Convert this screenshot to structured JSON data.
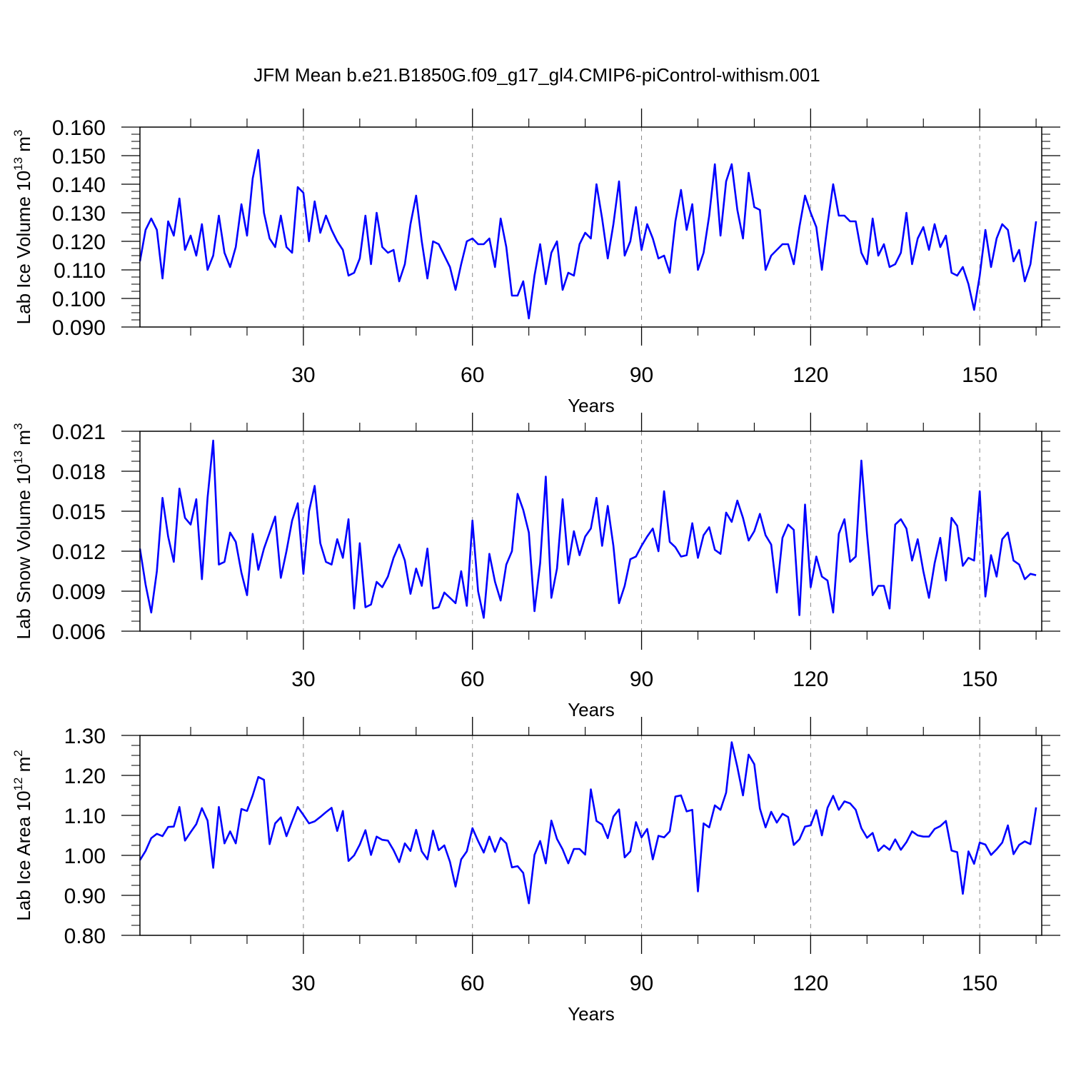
{
  "chart_data": {
    "type": "line",
    "title": "JFM Mean b.e21.B1850G.f09_g17_gl4.CMIP6-piControl-withism.001",
    "line_color": "#0000ff",
    "x": [
      1,
      2,
      3,
      4,
      5,
      6,
      7,
      8,
      9,
      10,
      11,
      12,
      13,
      14,
      15,
      16,
      17,
      18,
      19,
      20,
      21,
      22,
      23,
      24,
      25,
      26,
      27,
      28,
      29,
      30,
      31,
      32,
      33,
      34,
      35,
      36,
      37,
      38,
      39,
      40,
      41,
      42,
      43,
      44,
      45,
      46,
      47,
      48,
      49,
      50,
      51,
      52,
      53,
      54,
      55,
      56,
      57,
      58,
      59,
      60,
      61,
      62,
      63,
      64,
      65,
      66,
      67,
      68,
      69,
      70,
      71,
      72,
      73,
      74,
      75,
      76,
      77,
      78,
      79,
      80,
      81,
      82,
      83,
      84,
      85,
      86,
      87,
      88,
      89,
      90,
      91,
      92,
      93,
      94,
      95,
      96,
      97,
      98,
      99,
      100,
      101,
      102,
      103,
      104,
      105,
      106,
      107,
      108,
      109,
      110,
      111,
      112,
      113,
      114,
      115,
      116,
      117,
      118,
      119,
      120,
      121,
      122,
      123,
      124,
      125,
      126,
      127,
      128,
      129,
      130,
      131,
      132,
      133,
      134,
      135,
      136,
      137,
      138,
      139,
      140,
      141,
      142,
      143,
      144,
      145,
      146,
      147,
      148,
      149,
      150,
      151,
      152,
      153,
      154,
      155,
      156,
      157,
      158,
      159,
      160,
      161
    ],
    "xlim": [
      1,
      161
    ],
    "xticks": [
      30,
      60,
      90,
      120,
      150
    ],
    "xminor": [
      10,
      20,
      40,
      50,
      70,
      80,
      100,
      110,
      130,
      140,
      160
    ],
    "xlabel": "Years",
    "panels": [
      {
        "name": "lab-ice-volume",
        "ylabel_main": "Lab Ice Volume 10",
        "ylabel_exp": "13",
        "ylabel_unit": " m",
        "ylabel_unit_exp": "3",
        "ylim": [
          0.09,
          0.16
        ],
        "yticks": [
          0.09,
          0.1,
          0.11,
          0.12,
          0.13,
          0.14,
          0.15,
          0.16
        ],
        "ytick_labels": [
          "0.090",
          "0.100",
          "0.110",
          "0.120",
          "0.130",
          "0.140",
          "0.150",
          "0.160"
        ],
        "yminor_step": 0.0025,
        "values": [
          0.113,
          0.124,
          0.128,
          0.124,
          0.107,
          0.127,
          0.122,
          0.135,
          0.117,
          0.122,
          0.115,
          0.126,
          0.11,
          0.115,
          0.129,
          0.116,
          0.111,
          0.118,
          0.133,
          0.122,
          0.142,
          0.152,
          0.13,
          0.121,
          0.118,
          0.129,
          0.118,
          0.116,
          0.139,
          0.137,
          0.12,
          0.134,
          0.123,
          0.129,
          0.124,
          0.12,
          0.117,
          0.108,
          0.109,
          0.114,
          0.129,
          0.112,
          0.13,
          0.118,
          0.116,
          0.117,
          0.106,
          0.112,
          0.126,
          0.136,
          0.12,
          0.107,
          0.12,
          0.119,
          0.115,
          0.111,
          0.103,
          0.112,
          0.12,
          0.121,
          0.119,
          0.119,
          0.121,
          0.111,
          0.128,
          0.118,
          0.101,
          0.101,
          0.106,
          0.093,
          0.108,
          0.119,
          0.105,
          0.116,
          0.12,
          0.103,
          0.109,
          0.108,
          0.119,
          0.123,
          0.121,
          0.14,
          0.128,
          0.114,
          0.126,
          0.141,
          0.115,
          0.12,
          0.132,
          0.117,
          0.126,
          0.121,
          0.114,
          0.115,
          0.109,
          0.127,
          0.138,
          0.124,
          0.133,
          0.11,
          0.116,
          0.129,
          0.147,
          0.122,
          0.141,
          0.147,
          0.131,
          0.121,
          0.144,
          0.132,
          0.131,
          0.11,
          0.115,
          0.117,
          0.119,
          0.119,
          0.112,
          0.125,
          0.136,
          0.13,
          0.125,
          0.11,
          0.126,
          0.14,
          0.129,
          0.129,
          0.127,
          0.127,
          0.116,
          0.112,
          0.128,
          0.115,
          0.119,
          0.111,
          0.112,
          0.116,
          0.13,
          0.112,
          0.121,
          0.125,
          0.117,
          0.126,
          0.118,
          0.122,
          0.109,
          0.108,
          0.111,
          0.105,
          0.096,
          0.108,
          0.124,
          0.111,
          0.121,
          0.126,
          0.124,
          0.113,
          0.117,
          0.106,
          0.112,
          0.127
        ]
      },
      {
        "name": "lab-snow-volume",
        "ylabel_main": "Lab Snow Volume 10",
        "ylabel_exp": "13",
        "ylabel_unit": " m",
        "ylabel_unit_exp": "3",
        "ylim": [
          0.006,
          0.021
        ],
        "yticks": [
          0.006,
          0.009,
          0.012,
          0.015,
          0.018,
          0.021
        ],
        "ytick_labels": [
          "0.006",
          "0.009",
          "0.012",
          "0.015",
          "0.018",
          "0.021"
        ],
        "yminor_step": 0.00075,
        "values": [
          0.0122,
          0.0095,
          0.0074,
          0.0105,
          0.016,
          0.0131,
          0.0112,
          0.0167,
          0.0145,
          0.014,
          0.0159,
          0.0099,
          0.016,
          0.0203,
          0.011,
          0.0112,
          0.0134,
          0.0127,
          0.0104,
          0.0087,
          0.0133,
          0.0106,
          0.0122,
          0.0134,
          0.0146,
          0.01,
          0.012,
          0.0143,
          0.0156,
          0.0103,
          0.015,
          0.0169,
          0.0126,
          0.0112,
          0.011,
          0.0129,
          0.0115,
          0.0144,
          0.0077,
          0.0126,
          0.0078,
          0.008,
          0.0097,
          0.0093,
          0.0101,
          0.0115,
          0.0125,
          0.0113,
          0.0088,
          0.0107,
          0.0094,
          0.0122,
          0.0077,
          0.0078,
          0.0089,
          0.0085,
          0.0081,
          0.0105,
          0.0079,
          0.0143,
          0.009,
          0.007,
          0.0118,
          0.0097,
          0.0083,
          0.011,
          0.012,
          0.0163,
          0.0151,
          0.0134,
          0.0075,
          0.0111,
          0.0176,
          0.0085,
          0.0107,
          0.0159,
          0.011,
          0.0135,
          0.0117,
          0.0131,
          0.0137,
          0.016,
          0.0124,
          0.0154,
          0.0124,
          0.0081,
          0.0094,
          0.0114,
          0.0116,
          0.0124,
          0.0131,
          0.0137,
          0.012,
          0.0165,
          0.0127,
          0.0123,
          0.0116,
          0.0117,
          0.0141,
          0.0115,
          0.0132,
          0.0138,
          0.0121,
          0.0118,
          0.0149,
          0.0142,
          0.0158,
          0.0145,
          0.0128,
          0.0135,
          0.0148,
          0.0132,
          0.0125,
          0.0089,
          0.013,
          0.014,
          0.0136,
          0.0072,
          0.0155,
          0.0093,
          0.0116,
          0.0101,
          0.0098,
          0.0074,
          0.0133,
          0.0144,
          0.0112,
          0.0116,
          0.0188,
          0.0133,
          0.0087,
          0.0094,
          0.0094,
          0.0077,
          0.014,
          0.0144,
          0.0137,
          0.0113,
          0.0129,
          0.0105,
          0.0085,
          0.0111,
          0.013,
          0.0098,
          0.0145,
          0.0139,
          0.0109,
          0.0115,
          0.0113,
          0.0165,
          0.0086,
          0.0117,
          0.0101,
          0.0129,
          0.0134,
          0.0113,
          0.011,
          0.0099,
          0.0103,
          0.0102
        ]
      },
      {
        "name": "lab-ice-area",
        "ylabel_main": "Lab Ice Area 10",
        "ylabel_exp": "12",
        "ylabel_unit": " m",
        "ylabel_unit_exp": "2",
        "ylim": [
          0.8,
          1.3
        ],
        "yticks": [
          0.8,
          0.9,
          1.0,
          1.1,
          1.2,
          1.3
        ],
        "ytick_labels": [
          "0.80",
          "0.90",
          "1.00",
          "1.10",
          "1.20",
          "1.30"
        ],
        "yminor_step": 0.025,
        "values": [
          0.988,
          1.011,
          1.043,
          1.054,
          1.048,
          1.071,
          1.072,
          1.121,
          1.037,
          1.058,
          1.078,
          1.118,
          1.087,
          0.969,
          1.121,
          1.03,
          1.06,
          1.03,
          1.116,
          1.111,
          1.15,
          1.196,
          1.189,
          1.028,
          1.08,
          1.095,
          1.048,
          1.085,
          1.121,
          1.101,
          1.08,
          1.085,
          1.096,
          1.108,
          1.119,
          1.061,
          1.111,
          0.986,
          1.0,
          1.027,
          1.063,
          1.001,
          1.047,
          1.039,
          1.037,
          1.013,
          0.983,
          1.03,
          1.011,
          1.064,
          1.01,
          0.99,
          1.062,
          1.013,
          1.025,
          0.984,
          0.922,
          0.99,
          1.01,
          1.068,
          1.036,
          1.007,
          1.047,
          1.009,
          1.044,
          1.03,
          0.97,
          0.973,
          0.956,
          0.88,
          1.001,
          1.036,
          0.98,
          1.087,
          1.041,
          1.015,
          0.98,
          1.016,
          1.016,
          1.002,
          1.165,
          1.086,
          1.077,
          1.043,
          1.097,
          1.115,
          0.995,
          1.01,
          1.083,
          1.045,
          1.066,
          0.99,
          1.049,
          1.045,
          1.06,
          1.147,
          1.15,
          1.11,
          1.114,
          0.91,
          1.08,
          1.07,
          1.125,
          1.114,
          1.157,
          1.283,
          1.221,
          1.15,
          1.252,
          1.228,
          1.117,
          1.07,
          1.109,
          1.082,
          1.104,
          1.096,
          1.026,
          1.04,
          1.072,
          1.075,
          1.113,
          1.05,
          1.119,
          1.149,
          1.114,
          1.135,
          1.13,
          1.114,
          1.068,
          1.044,
          1.056,
          1.011,
          1.025,
          1.014,
          1.04,
          1.014,
          1.033,
          1.06,
          1.05,
          1.047,
          1.047,
          1.066,
          1.073,
          1.086,
          1.012,
          1.008,
          0.904,
          1.01,
          0.979,
          1.032,
          1.027,
          1.001,
          1.015,
          1.032,
          1.075,
          1.003,
          1.026,
          1.035,
          1.028,
          1.12
        ]
      }
    ]
  }
}
